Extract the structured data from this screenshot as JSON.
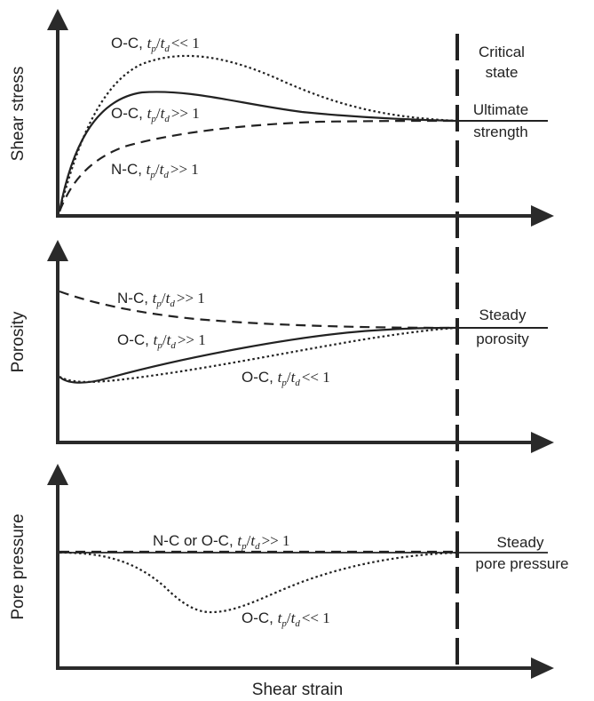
{
  "x_axis_label": "Shear strain",
  "critical_state": {
    "label_line1": "Critical",
    "label_line2": "state"
  },
  "panels": [
    {
      "y_label": "Shear stress",
      "end_label_line1": "Ultimate",
      "end_label_line2": "strength",
      "curves": [
        {
          "label_prefix": "O-C, ",
          "t1": "t",
          "s1": "p",
          "slash": "/",
          "t2": "t",
          "s2": "d",
          "relation": "<< 1"
        },
        {
          "label_prefix": "O-C, ",
          "t1": "t",
          "s1": "p",
          "slash": "/",
          "t2": "t",
          "s2": "d",
          "relation": ">> 1"
        },
        {
          "label_prefix": "N-C, ",
          "t1": "t",
          "s1": "p",
          "slash": "/",
          "t2": "t",
          "s2": "d",
          "relation": ">> 1"
        }
      ]
    },
    {
      "y_label": "Porosity",
      "end_label_line1": "Steady",
      "end_label_line2": "porosity",
      "curves": [
        {
          "label_prefix": "N-C, ",
          "t1": "t",
          "s1": "p",
          "slash": "/",
          "t2": "t",
          "s2": "d",
          "relation": ">> 1"
        },
        {
          "label_prefix": "O-C, ",
          "t1": "t",
          "s1": "p",
          "slash": "/",
          "t2": "t",
          "s2": "d",
          "relation": ">> 1"
        },
        {
          "label_prefix": "O-C, ",
          "t1": "t",
          "s1": "p",
          "slash": "/",
          "t2": "t",
          "s2": "d",
          "relation": "<< 1"
        }
      ]
    },
    {
      "y_label": "Pore pressure",
      "end_label_line1": "Steady",
      "end_label_line2": "pore pressure",
      "curves": [
        {
          "label_prefix": "N-C or O-C, ",
          "t1": "t",
          "s1": "p",
          "slash": "/",
          "t2": "t",
          "s2": "d",
          "relation": ">> 1"
        },
        {
          "label_prefix": "O-C, ",
          "t1": "t",
          "s1": "p",
          "slash": "/",
          "t2": "t",
          "s2": "d",
          "relation": "<< 1"
        }
      ]
    }
  ]
}
